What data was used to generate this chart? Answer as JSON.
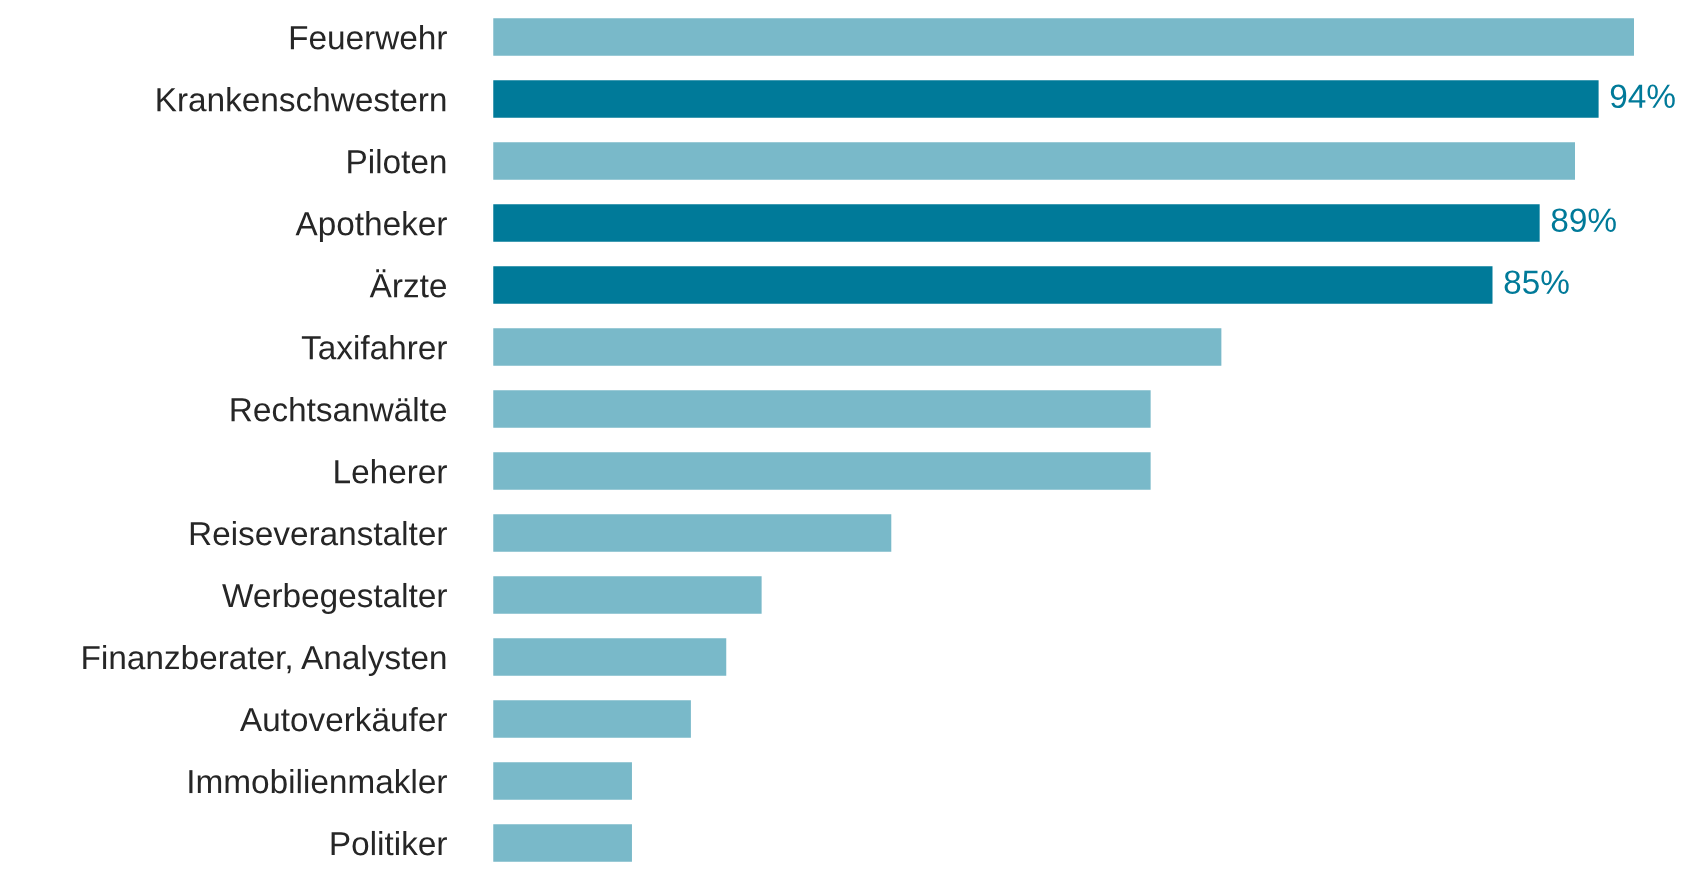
{
  "chart_data": {
    "type": "bar",
    "orientation": "horizontal",
    "categories": [
      "Feuerwehr",
      "Krankenschwestern",
      "Piloten",
      "Apotheker",
      "Ärzte",
      "Taxifahrer",
      "Rechtsanwälte",
      "Leherer",
      "Reiseveranstalter",
      "Werbegestalter",
      "Finanzberater, Analysten",
      "Autoverkäufer",
      "Immobilienmakler",
      "Politiker"
    ],
    "values": [
      97,
      94,
      92,
      89,
      85,
      62,
      56,
      56,
      34,
      23,
      20,
      17,
      12,
      12
    ],
    "colors": [
      "#79b9c9",
      "#007a99",
      "#79b9c9",
      "#007a99",
      "#007a99",
      "#79b9c9",
      "#79b9c9",
      "#79b9c9",
      "#79b9c9",
      "#79b9c9",
      "#79b9c9",
      "#79b9c9",
      "#79b9c9",
      "#79b9c9"
    ],
    "value_labels": [
      null,
      "94%",
      null,
      "89%",
      "85%",
      null,
      null,
      null,
      null,
      null,
      null,
      null,
      null,
      null
    ],
    "tick_labels": "y",
    "grid": false,
    "legend": false
  }
}
